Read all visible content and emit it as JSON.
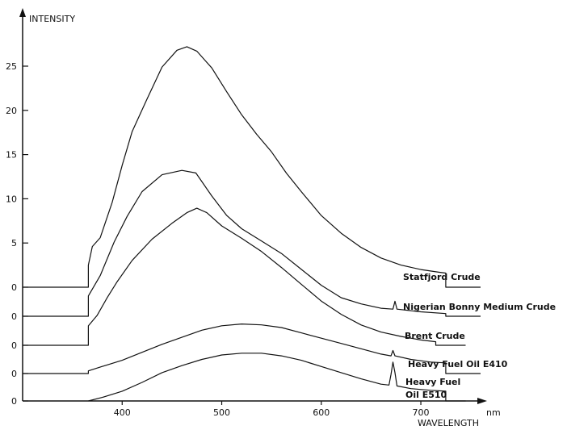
{
  "chart_data": {
    "type": "line",
    "ylabel": "INTENSITY",
    "xlabel": "WAVELENGTH",
    "xunit": "nm",
    "xlim": [
      300,
      760
    ],
    "xticks": [
      400,
      500,
      600,
      700
    ],
    "yticks": [
      5,
      10,
      15,
      20,
      25
    ],
    "series": [
      {
        "name": "Statfjord Crude",
        "baseline": "0",
        "label_lines": [
          "Statfjord Crude"
        ],
        "points": [
          [
            300,
            0
          ],
          [
            366,
            0
          ],
          [
            366,
            2.5
          ],
          [
            370,
            4.6
          ],
          [
            378,
            5.6
          ],
          [
            390,
            9.6
          ],
          [
            400,
            13.8
          ],
          [
            410,
            17.6
          ],
          [
            425,
            21.3
          ],
          [
            440,
            24.9
          ],
          [
            455,
            26.8
          ],
          [
            465,
            27.2
          ],
          [
            475,
            26.7
          ],
          [
            490,
            24.8
          ],
          [
            505,
            22.1
          ],
          [
            520,
            19.5
          ],
          [
            535,
            17.3
          ],
          [
            550,
            15.3
          ],
          [
            565,
            12.9
          ],
          [
            580,
            10.8
          ],
          [
            600,
            8.1
          ],
          [
            620,
            6.1
          ],
          [
            640,
            4.5
          ],
          [
            660,
            3.3
          ],
          [
            680,
            2.5
          ],
          [
            700,
            2.0
          ],
          [
            718,
            1.7
          ],
          [
            725,
            1.6
          ],
          [
            725,
            0
          ],
          [
            760,
            0
          ]
        ]
      },
      {
        "name": "Nigerian Bonny Medium Crude",
        "baseline": "0",
        "label_lines": [
          "Nigerian Bonny Medium Crude"
        ],
        "points": [
          [
            300,
            0
          ],
          [
            366,
            0
          ],
          [
            366,
            2.3
          ],
          [
            378,
            4.6
          ],
          [
            392,
            8.4
          ],
          [
            405,
            11.3
          ],
          [
            420,
            14.1
          ],
          [
            440,
            16.0
          ],
          [
            460,
            16.5
          ],
          [
            474,
            16.2
          ],
          [
            490,
            13.6
          ],
          [
            505,
            11.4
          ],
          [
            520,
            9.9
          ],
          [
            540,
            8.5
          ],
          [
            560,
            7.1
          ],
          [
            580,
            5.3
          ],
          [
            600,
            3.5
          ],
          [
            620,
            2.1
          ],
          [
            640,
            1.4
          ],
          [
            660,
            0.9
          ],
          [
            672,
            0.8
          ],
          [
            674,
            1.7
          ],
          [
            676,
            0.8
          ],
          [
            700,
            0.5
          ],
          [
            725,
            0.3
          ],
          [
            725,
            0
          ],
          [
            760,
            0
          ]
        ]
      },
      {
        "name": "Brent Crude",
        "baseline": "0",
        "label_lines": [
          "Brent Crude"
        ],
        "points": [
          [
            300,
            0
          ],
          [
            366,
            0
          ],
          [
            366,
            2.2
          ],
          [
            375,
            3.4
          ],
          [
            385,
            5.4
          ],
          [
            395,
            7.2
          ],
          [
            410,
            9.6
          ],
          [
            430,
            12.0
          ],
          [
            450,
            13.8
          ],
          [
            465,
            15.0
          ],
          [
            475,
            15.5
          ],
          [
            485,
            15.0
          ],
          [
            500,
            13.5
          ],
          [
            520,
            12.1
          ],
          [
            540,
            10.6
          ],
          [
            560,
            8.8
          ],
          [
            580,
            6.9
          ],
          [
            600,
            5.0
          ],
          [
            620,
            3.5
          ],
          [
            640,
            2.3
          ],
          [
            660,
            1.5
          ],
          [
            680,
            1.0
          ],
          [
            700,
            0.6
          ],
          [
            715,
            0.4
          ],
          [
            715,
            0
          ],
          [
            745,
            0
          ]
        ]
      },
      {
        "name": "Heavy Fuel Oil E410",
        "baseline": "0",
        "label_lines": [
          "Heavy Fuel Oil E410"
        ],
        "points": [
          [
            300,
            0
          ],
          [
            366,
            0
          ],
          [
            366,
            0.3
          ],
          [
            380,
            0.8
          ],
          [
            400,
            1.5
          ],
          [
            420,
            2.4
          ],
          [
            440,
            3.3
          ],
          [
            460,
            4.1
          ],
          [
            480,
            4.9
          ],
          [
            500,
            5.4
          ],
          [
            520,
            5.6
          ],
          [
            540,
            5.5
          ],
          [
            560,
            5.2
          ],
          [
            580,
            4.6
          ],
          [
            600,
            4.0
          ],
          [
            620,
            3.4
          ],
          [
            640,
            2.8
          ],
          [
            660,
            2.2
          ],
          [
            670,
            2.0
          ],
          [
            672,
            2.6
          ],
          [
            674,
            2.0
          ],
          [
            690,
            1.6
          ],
          [
            710,
            1.3
          ],
          [
            725,
            1.2
          ],
          [
            725,
            0
          ],
          [
            760,
            0
          ]
        ]
      },
      {
        "name": "Heavy Fuel Oil E510",
        "baseline": "0",
        "label_lines": [
          "Heavy Fuel",
          "Oil E510"
        ],
        "points": [
          [
            366,
            0
          ],
          [
            380,
            0.4
          ],
          [
            400,
            1.1
          ],
          [
            420,
            2.1
          ],
          [
            440,
            3.2
          ],
          [
            460,
            4.0
          ],
          [
            480,
            4.7
          ],
          [
            500,
            5.2
          ],
          [
            520,
            5.4
          ],
          [
            540,
            5.4
          ],
          [
            560,
            5.1
          ],
          [
            580,
            4.6
          ],
          [
            600,
            3.9
          ],
          [
            620,
            3.2
          ],
          [
            640,
            2.5
          ],
          [
            660,
            1.9
          ],
          [
            668,
            1.8
          ],
          [
            670,
            3.0
          ],
          [
            672,
            4.4
          ],
          [
            674,
            3.2
          ],
          [
            676,
            1.7
          ],
          [
            690,
            1.4
          ],
          [
            710,
            1.2
          ],
          [
            725,
            1.1
          ],
          [
            725,
            0
          ],
          [
            745,
            0
          ]
        ]
      }
    ]
  }
}
